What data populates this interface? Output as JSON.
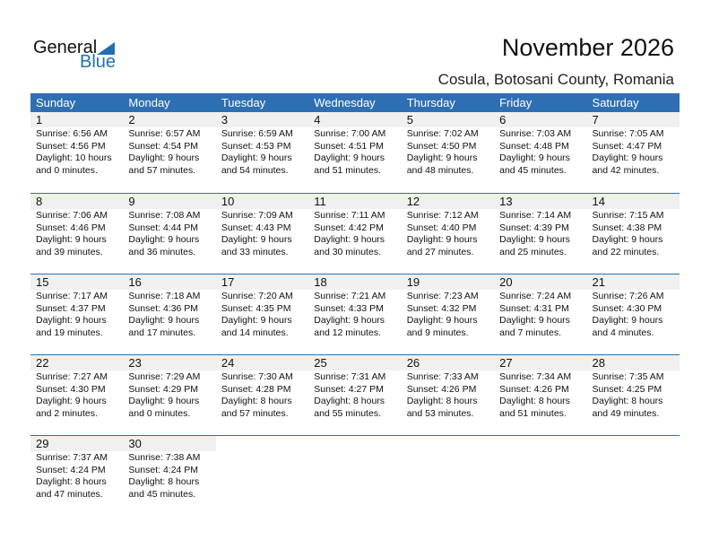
{
  "logo": {
    "general": "General",
    "blue": "Blue"
  },
  "title": "November 2026",
  "subtitle": "Cosula, Botosani County, Romania",
  "weekdays": [
    "Sunday",
    "Monday",
    "Tuesday",
    "Wednesday",
    "Thursday",
    "Friday",
    "Saturday"
  ],
  "colors": {
    "header": "#2e6fb4",
    "logo_blue": "#1f6fb8",
    "day_band": "#f0f0f0"
  },
  "days": [
    {
      "day": "1",
      "sunrise": "Sunrise: 6:56 AM",
      "sunset": "Sunset: 4:56 PM",
      "daylight1": "Daylight: 10 hours",
      "daylight2": "and 0 minutes."
    },
    {
      "day": "2",
      "sunrise": "Sunrise: 6:57 AM",
      "sunset": "Sunset: 4:54 PM",
      "daylight1": "Daylight: 9 hours",
      "daylight2": "and 57 minutes."
    },
    {
      "day": "3",
      "sunrise": "Sunrise: 6:59 AM",
      "sunset": "Sunset: 4:53 PM",
      "daylight1": "Daylight: 9 hours",
      "daylight2": "and 54 minutes."
    },
    {
      "day": "4",
      "sunrise": "Sunrise: 7:00 AM",
      "sunset": "Sunset: 4:51 PM",
      "daylight1": "Daylight: 9 hours",
      "daylight2": "and 51 minutes."
    },
    {
      "day": "5",
      "sunrise": "Sunrise: 7:02 AM",
      "sunset": "Sunset: 4:50 PM",
      "daylight1": "Daylight: 9 hours",
      "daylight2": "and 48 minutes."
    },
    {
      "day": "6",
      "sunrise": "Sunrise: 7:03 AM",
      "sunset": "Sunset: 4:48 PM",
      "daylight1": "Daylight: 9 hours",
      "daylight2": "and 45 minutes."
    },
    {
      "day": "7",
      "sunrise": "Sunrise: 7:05 AM",
      "sunset": "Sunset: 4:47 PM",
      "daylight1": "Daylight: 9 hours",
      "daylight2": "and 42 minutes."
    },
    {
      "day": "8",
      "sunrise": "Sunrise: 7:06 AM",
      "sunset": "Sunset: 4:46 PM",
      "daylight1": "Daylight: 9 hours",
      "daylight2": "and 39 minutes."
    },
    {
      "day": "9",
      "sunrise": "Sunrise: 7:08 AM",
      "sunset": "Sunset: 4:44 PM",
      "daylight1": "Daylight: 9 hours",
      "daylight2": "and 36 minutes."
    },
    {
      "day": "10",
      "sunrise": "Sunrise: 7:09 AM",
      "sunset": "Sunset: 4:43 PM",
      "daylight1": "Daylight: 9 hours",
      "daylight2": "and 33 minutes."
    },
    {
      "day": "11",
      "sunrise": "Sunrise: 7:11 AM",
      "sunset": "Sunset: 4:42 PM",
      "daylight1": "Daylight: 9 hours",
      "daylight2": "and 30 minutes."
    },
    {
      "day": "12",
      "sunrise": "Sunrise: 7:12 AM",
      "sunset": "Sunset: 4:40 PM",
      "daylight1": "Daylight: 9 hours",
      "daylight2": "and 27 minutes."
    },
    {
      "day": "13",
      "sunrise": "Sunrise: 7:14 AM",
      "sunset": "Sunset: 4:39 PM",
      "daylight1": "Daylight: 9 hours",
      "daylight2": "and 25 minutes."
    },
    {
      "day": "14",
      "sunrise": "Sunrise: 7:15 AM",
      "sunset": "Sunset: 4:38 PM",
      "daylight1": "Daylight: 9 hours",
      "daylight2": "and 22 minutes."
    },
    {
      "day": "15",
      "sunrise": "Sunrise: 7:17 AM",
      "sunset": "Sunset: 4:37 PM",
      "daylight1": "Daylight: 9 hours",
      "daylight2": "and 19 minutes."
    },
    {
      "day": "16",
      "sunrise": "Sunrise: 7:18 AM",
      "sunset": "Sunset: 4:36 PM",
      "daylight1": "Daylight: 9 hours",
      "daylight2": "and 17 minutes."
    },
    {
      "day": "17",
      "sunrise": "Sunrise: 7:20 AM",
      "sunset": "Sunset: 4:35 PM",
      "daylight1": "Daylight: 9 hours",
      "daylight2": "and 14 minutes."
    },
    {
      "day": "18",
      "sunrise": "Sunrise: 7:21 AM",
      "sunset": "Sunset: 4:33 PM",
      "daylight1": "Daylight: 9 hours",
      "daylight2": "and 12 minutes."
    },
    {
      "day": "19",
      "sunrise": "Sunrise: 7:23 AM",
      "sunset": "Sunset: 4:32 PM",
      "daylight1": "Daylight: 9 hours",
      "daylight2": "and 9 minutes."
    },
    {
      "day": "20",
      "sunrise": "Sunrise: 7:24 AM",
      "sunset": "Sunset: 4:31 PM",
      "daylight1": "Daylight: 9 hours",
      "daylight2": "and 7 minutes."
    },
    {
      "day": "21",
      "sunrise": "Sunrise: 7:26 AM",
      "sunset": "Sunset: 4:30 PM",
      "daylight1": "Daylight: 9 hours",
      "daylight2": "and 4 minutes."
    },
    {
      "day": "22",
      "sunrise": "Sunrise: 7:27 AM",
      "sunset": "Sunset: 4:30 PM",
      "daylight1": "Daylight: 9 hours",
      "daylight2": "and 2 minutes."
    },
    {
      "day": "23",
      "sunrise": "Sunrise: 7:29 AM",
      "sunset": "Sunset: 4:29 PM",
      "daylight1": "Daylight: 9 hours",
      "daylight2": "and 0 minutes."
    },
    {
      "day": "24",
      "sunrise": "Sunrise: 7:30 AM",
      "sunset": "Sunset: 4:28 PM",
      "daylight1": "Daylight: 8 hours",
      "daylight2": "and 57 minutes."
    },
    {
      "day": "25",
      "sunrise": "Sunrise: 7:31 AM",
      "sunset": "Sunset: 4:27 PM",
      "daylight1": "Daylight: 8 hours",
      "daylight2": "and 55 minutes."
    },
    {
      "day": "26",
      "sunrise": "Sunrise: 7:33 AM",
      "sunset": "Sunset: 4:26 PM",
      "daylight1": "Daylight: 8 hours",
      "daylight2": "and 53 minutes."
    },
    {
      "day": "27",
      "sunrise": "Sunrise: 7:34 AM",
      "sunset": "Sunset: 4:26 PM",
      "daylight1": "Daylight: 8 hours",
      "daylight2": "and 51 minutes."
    },
    {
      "day": "28",
      "sunrise": "Sunrise: 7:35 AM",
      "sunset": "Sunset: 4:25 PM",
      "daylight1": "Daylight: 8 hours",
      "daylight2": "and 49 minutes."
    },
    {
      "day": "29",
      "sunrise": "Sunrise: 7:37 AM",
      "sunset": "Sunset: 4:24 PM",
      "daylight1": "Daylight: 8 hours",
      "daylight2": "and 47 minutes."
    },
    {
      "day": "30",
      "sunrise": "Sunrise: 7:38 AM",
      "sunset": "Sunset: 4:24 PM",
      "daylight1": "Daylight: 8 hours",
      "daylight2": "and 45 minutes."
    }
  ]
}
